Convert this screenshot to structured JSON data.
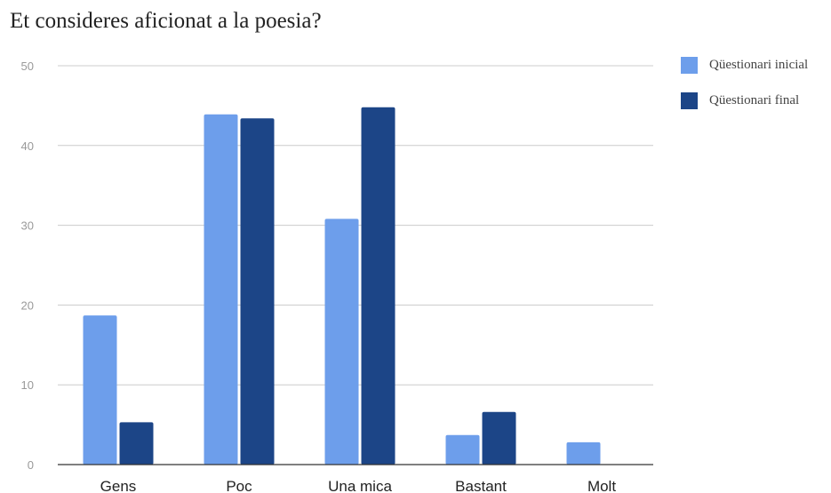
{
  "chart_data": {
    "type": "bar",
    "title": "Et consideres aficionat a la poesia?",
    "categories": [
      "Gens",
      "Poc",
      "Una mica",
      "Bastant",
      "Molt"
    ],
    "series": [
      {
        "name": "Qüestionari inicial",
        "color": "#6d9eeb",
        "values": [
          18.7,
          43.9,
          30.8,
          3.7,
          2.8
        ]
      },
      {
        "name": "Qüestionari final",
        "color": "#1c4587",
        "values": [
          5.3,
          43.4,
          44.8,
          6.6,
          0
        ]
      }
    ],
    "ylim": [
      0,
      50
    ],
    "yticks": [
      0,
      10,
      20,
      30,
      40,
      50
    ],
    "grid": true,
    "legend_position": "right"
  }
}
